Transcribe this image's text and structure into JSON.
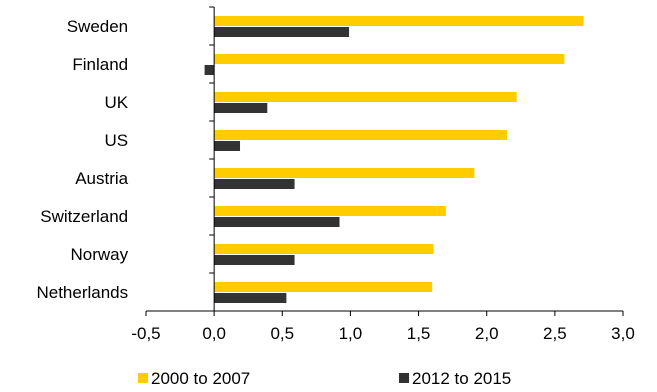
{
  "chart_data": {
    "type": "bar",
    "orientation": "horizontal",
    "categories": [
      "Sweden",
      "Finland",
      "UK",
      "US",
      "Austria",
      "Switzerland",
      "Norway",
      "Netherlands"
    ],
    "series": [
      {
        "name": "2000 to 2007",
        "color": "#FFCC00",
        "values": [
          2.71,
          2.57,
          2.22,
          2.15,
          1.91,
          1.7,
          1.61,
          1.6
        ]
      },
      {
        "name": "2012 to 2015",
        "color": "#333333",
        "values": [
          0.99,
          -0.07,
          0.39,
          0.19,
          0.59,
          0.92,
          0.59,
          0.53
        ]
      }
    ],
    "xlim": [
      -0.5,
      3.0
    ],
    "xticks": [
      -0.5,
      0.0,
      0.5,
      1.0,
      1.5,
      2.0,
      2.5,
      3.0
    ],
    "xtick_labels": [
      "-0,5",
      "0,0",
      "0,5",
      "1,0",
      "1,5",
      "2,0",
      "2,5",
      "3,0"
    ],
    "title": "",
    "xlabel": "",
    "ylabel": "",
    "grid": false,
    "legend_position": "bottom"
  }
}
